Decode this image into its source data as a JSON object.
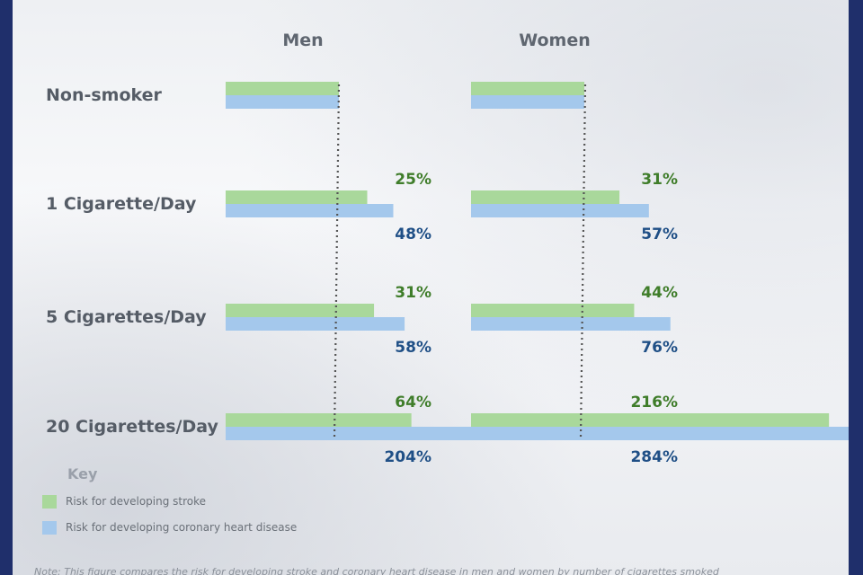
{
  "chart_data": {
    "type": "bar",
    "orientation": "horizontal",
    "panels": [
      "Men",
      "Women"
    ],
    "categories": [
      "Non-smoker",
      "1 Cigarette/Day",
      "5 Cigarettes/Day",
      "20 Cigarettes/Day"
    ],
    "baseline": "Non-smoker",
    "series": [
      {
        "name": "Risk for developing stroke",
        "color": "#a9d89b",
        "men": [
          0,
          25,
          31,
          64
        ],
        "women": [
          0,
          31,
          44,
          216
        ],
        "labels": {
          "men": [
            "",
            "25%",
            "31%",
            "64%"
          ],
          "women": [
            "",
            "31%",
            "44%",
            "216%"
          ]
        }
      },
      {
        "name": "Risk for developing coronary heart disease",
        "color": "#a4c8ec",
        "men": [
          0,
          48,
          58,
          204
        ],
        "women": [
          0,
          57,
          76,
          284
        ],
        "labels": {
          "men": [
            "",
            "48%",
            "58%",
            "204%"
          ],
          "women": [
            "",
            "57%",
            "76%",
            "284%"
          ]
        }
      }
    ]
  },
  "legend": {
    "title": "Key"
  },
  "note": "Note: This figure compares the risk for developing stroke and coronary heart disease in men and women by number of cigarettes smoked"
}
